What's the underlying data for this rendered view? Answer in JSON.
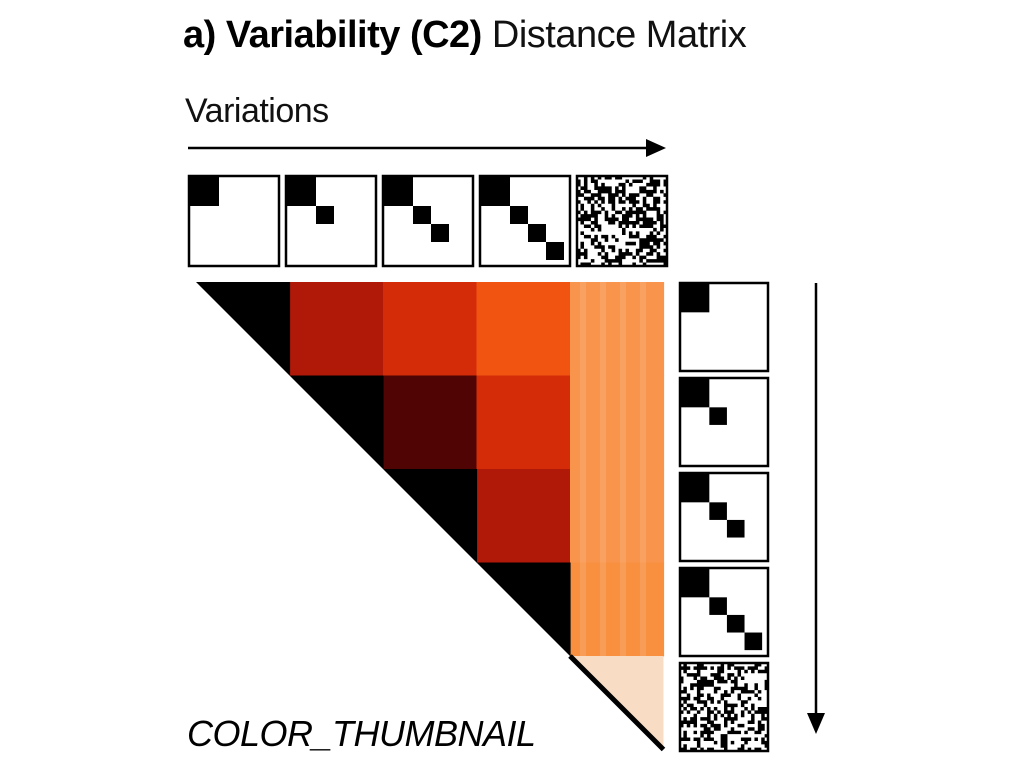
{
  "title": {
    "panel": "a)",
    "name": "Variability (C2)",
    "subtitle": "Distance Matrix"
  },
  "axis_label": "Variations",
  "footer_label": "COLOR_THUMBNAIL",
  "colors": {
    "arrow": "#000000",
    "thumbnail_border": "#000000",
    "diagonal": "#000000"
  },
  "thumbnails": [
    {
      "id": "t1",
      "kind": "diagonal-blocks",
      "blocks": 1
    },
    {
      "id": "t2",
      "kind": "diagonal-blocks",
      "blocks": 2
    },
    {
      "id": "t3",
      "kind": "diagonal-blocks",
      "blocks": 3
    },
    {
      "id": "t4",
      "kind": "diagonal-blocks",
      "blocks": 4
    },
    {
      "id": "t5",
      "kind": "random-noise"
    }
  ],
  "matrix": {
    "size": 5,
    "cells": [
      {
        "row": 0,
        "col": 1,
        "color": "#b01808"
      },
      {
        "row": 0,
        "col": 2,
        "color": "#d42c08"
      },
      {
        "row": 0,
        "col": 3,
        "color": "#f05410"
      },
      {
        "row": 0,
        "col": 4,
        "color": "#f8944c"
      },
      {
        "row": 1,
        "col": 2,
        "color": "#500404"
      },
      {
        "row": 1,
        "col": 3,
        "color": "#d42c08"
      },
      {
        "row": 1,
        "col": 4,
        "color": "#f8944c"
      },
      {
        "row": 2,
        "col": 3,
        "color": "#b01808"
      },
      {
        "row": 2,
        "col": 4,
        "color": "#f8944c"
      },
      {
        "row": 3,
        "col": 4,
        "color": "#f89040"
      }
    ],
    "diagonal_cell_color": "#f8dcc4"
  }
}
